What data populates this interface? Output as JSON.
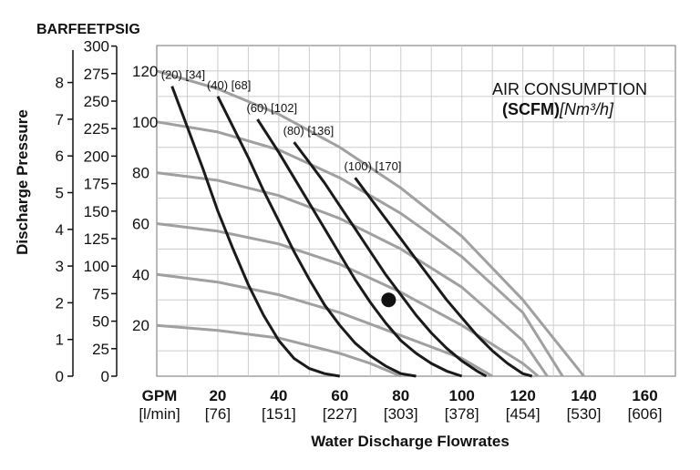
{
  "chart_data": {
    "type": "line",
    "pressure_unit_labels": [
      "BAR",
      "FEET",
      "PSIG"
    ],
    "ylabel": "Discharge Pressure",
    "xlabel": "Water Discharge Flowrates",
    "x_unit_primary": "GPM",
    "x_unit_secondary": "[l/min]",
    "x_ticks": [
      {
        "gpm": "20",
        "lmin": "[76]"
      },
      {
        "gpm": "40",
        "lmin": "[151]"
      },
      {
        "gpm": "60",
        "lmin": "[227]"
      },
      {
        "gpm": "80",
        "lmin": "[303]"
      },
      {
        "gpm": "100",
        "lmin": "[378]"
      },
      {
        "gpm": "120",
        "lmin": "[454]"
      },
      {
        "gpm": "140",
        "lmin": "[530]"
      },
      {
        "gpm": "160",
        "lmin": "[606]"
      }
    ],
    "bar_ticks": [
      "0",
      "1",
      "2",
      "3",
      "4",
      "5",
      "6",
      "7",
      "8"
    ],
    "feet_ticks": [
      "0",
      "25",
      "50",
      "75",
      "100",
      "125",
      "150",
      "175",
      "200",
      "225",
      "250",
      "275",
      "300"
    ],
    "psig_ticks": [
      "20",
      "40",
      "60",
      "80",
      "100",
      "120"
    ],
    "xlim": [
      0,
      170
    ],
    "ylim_psig": [
      0,
      130
    ],
    "legend_title_line1": "AIR CONSUMPTION",
    "legend_title_scfm": "(SCFM)",
    "legend_title_nm3": "[Nm³/h]",
    "grid": true,
    "air_curves": [
      {
        "label": "(20) [34]",
        "points": [
          [
            5,
            114
          ],
          [
            10,
            98
          ],
          [
            15,
            82
          ],
          [
            20,
            65
          ],
          [
            25,
            50
          ],
          [
            30,
            36
          ],
          [
            35,
            24
          ],
          [
            40,
            14
          ],
          [
            45,
            7
          ],
          [
            50,
            3
          ],
          [
            55,
            1
          ],
          [
            60,
            0
          ]
        ]
      },
      {
        "label": "(40) [68]",
        "points": [
          [
            20,
            110
          ],
          [
            25,
            98
          ],
          [
            30,
            86
          ],
          [
            35,
            73
          ],
          [
            40,
            61
          ],
          [
            45,
            49
          ],
          [
            50,
            38
          ],
          [
            55,
            28
          ],
          [
            60,
            20
          ],
          [
            65,
            13
          ],
          [
            70,
            8
          ],
          [
            75,
            4
          ],
          [
            80,
            1
          ],
          [
            85,
            0
          ]
        ]
      },
      {
        "label": "(60) [102]",
        "points": [
          [
            33,
            101
          ],
          [
            40,
            88
          ],
          [
            45,
            78
          ],
          [
            50,
            68
          ],
          [
            55,
            58
          ],
          [
            60,
            48
          ],
          [
            65,
            38
          ],
          [
            70,
            29
          ],
          [
            75,
            21
          ],
          [
            80,
            14
          ],
          [
            85,
            9
          ],
          [
            90,
            5
          ],
          [
            95,
            2
          ],
          [
            100,
            0
          ]
        ]
      },
      {
        "label": "(80) [136]",
        "points": [
          [
            45,
            92
          ],
          [
            50,
            84
          ],
          [
            55,
            76
          ],
          [
            60,
            67
          ],
          [
            65,
            58
          ],
          [
            70,
            49
          ],
          [
            75,
            40
          ],
          [
            80,
            32
          ],
          [
            85,
            24
          ],
          [
            90,
            17
          ],
          [
            95,
            11
          ],
          [
            100,
            6
          ],
          [
            105,
            2
          ],
          [
            108,
            0
          ]
        ]
      },
      {
        "label": "(100) [170]",
        "points": [
          [
            65,
            78
          ],
          [
            70,
            70
          ],
          [
            75,
            62
          ],
          [
            80,
            54
          ],
          [
            85,
            46
          ],
          [
            90,
            38
          ],
          [
            95,
            30
          ],
          [
            100,
            23
          ],
          [
            105,
            16
          ],
          [
            110,
            10
          ],
          [
            115,
            5
          ],
          [
            120,
            1
          ],
          [
            123,
            0
          ]
        ]
      }
    ],
    "pressure_curves": [
      {
        "points": [
          [
            0,
            20
          ],
          [
            20,
            18
          ],
          [
            40,
            15
          ],
          [
            60,
            9
          ],
          [
            70,
            5
          ],
          [
            80,
            0
          ]
        ]
      },
      {
        "points": [
          [
            0,
            40
          ],
          [
            20,
            37
          ],
          [
            40,
            32
          ],
          [
            60,
            25
          ],
          [
            80,
            16
          ],
          [
            100,
            7
          ],
          [
            110,
            0
          ]
        ]
      },
      {
        "points": [
          [
            0,
            60
          ],
          [
            20,
            57
          ],
          [
            40,
            52
          ],
          [
            60,
            44
          ],
          [
            80,
            33
          ],
          [
            100,
            20
          ],
          [
            120,
            5
          ],
          [
            125,
            0
          ]
        ]
      },
      {
        "points": [
          [
            0,
            80
          ],
          [
            20,
            77
          ],
          [
            40,
            71
          ],
          [
            60,
            62
          ],
          [
            80,
            50
          ],
          [
            100,
            35
          ],
          [
            120,
            14
          ],
          [
            128,
            0
          ]
        ]
      },
      {
        "points": [
          [
            0,
            100
          ],
          [
            20,
            96
          ],
          [
            40,
            89
          ],
          [
            60,
            78
          ],
          [
            80,
            64
          ],
          [
            100,
            47
          ],
          [
            120,
            25
          ],
          [
            133,
            0
          ]
        ]
      },
      {
        "points": [
          [
            0,
            120
          ],
          [
            20,
            113
          ],
          [
            40,
            103
          ],
          [
            60,
            90
          ],
          [
            80,
            74
          ],
          [
            100,
            55
          ],
          [
            120,
            30
          ],
          [
            140,
            0
          ]
        ]
      }
    ],
    "marker_point": [
      76,
      30
    ]
  }
}
